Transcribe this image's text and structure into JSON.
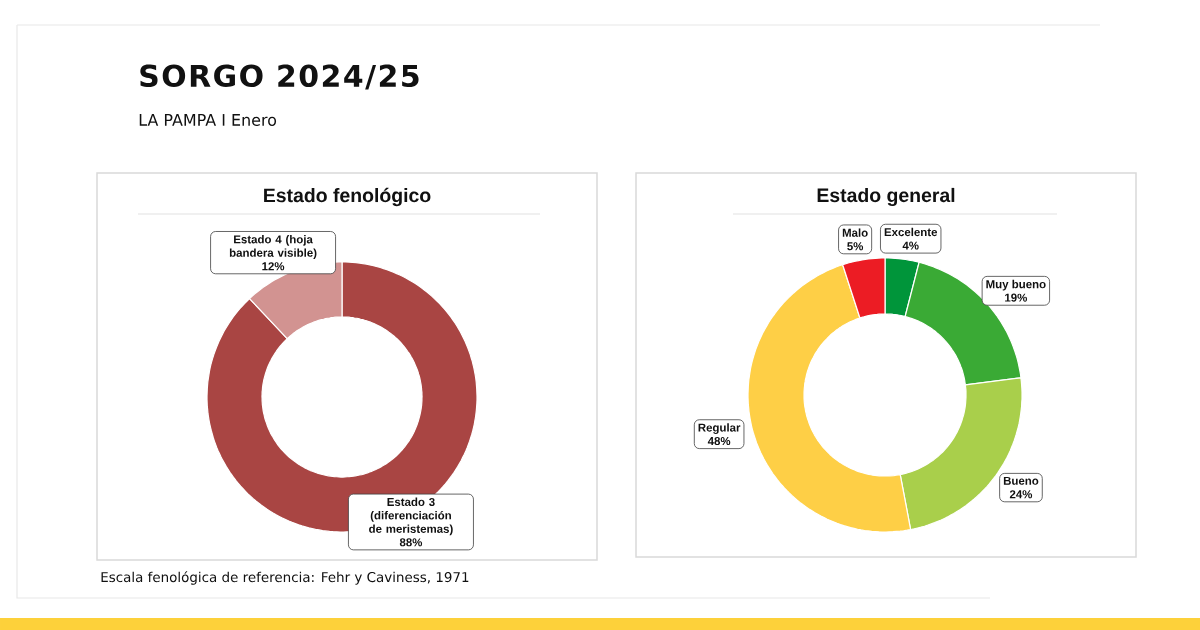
{
  "chart_data": [
    {
      "type": "other",
      "title": "SORGO 2024/25",
      "subtitle": "LA PAMPA I Enero"
    },
    {
      "type": "donut",
      "title": "Estado fenológico",
      "categories": [
        "Estado 3 (diferenciación de meristemas)",
        "Estado 4 (hoja bandera visible)"
      ],
      "values": [
        88,
        12
      ],
      "colors": [
        "#a94543",
        "#d29391"
      ],
      "value_labels": [
        "88%",
        "12%"
      ],
      "annotations": [
        "Escala fenológica de referencia: Fehr y Caviness, 1971"
      ]
    },
    {
      "type": "donut",
      "title": "Estado general",
      "categories": [
        "Excelente",
        "Muy bueno",
        "Bueno",
        "Regular",
        "Malo"
      ],
      "values": [
        4,
        19,
        24,
        48,
        5
      ],
      "colors": [
        "#00953a",
        "#3aaa35",
        "#a9cf4b",
        "#fecf46",
        "#ec1c24"
      ],
      "value_labels": [
        "4%",
        "19%",
        "24%",
        "48%",
        "5%"
      ]
    }
  ]
}
